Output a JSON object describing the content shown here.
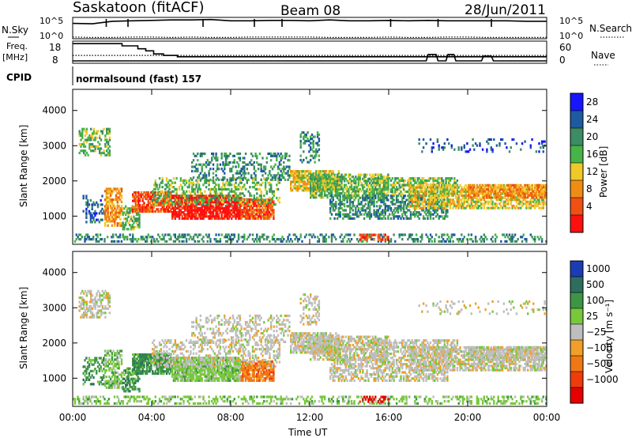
{
  "header": {
    "station": "Saskatoon (fitACF)",
    "beam": "Beam 08",
    "date": "28/Jun/2011"
  },
  "top_panels": {
    "nsky_label": "N.Sky",
    "nsearch_label": "N.Search",
    "nsky_ticks": [
      "10^5",
      "10^0"
    ],
    "freq_label_1": "Freq.",
    "freq_label_2": "[MHz]",
    "freq_ticks": [
      "18",
      "8"
    ],
    "nave_label": "Nave",
    "nave_ticks": [
      "60",
      "0"
    ],
    "cpid_label": "CPID",
    "cpid_value": "normalsound (fast) 157"
  },
  "colors": {
    "power_scale": [
      "#1616ff",
      "#1e5aa0",
      "#3c8c64",
      "#46b446",
      "#f0c828",
      "#f08c14",
      "#f05014",
      "#ff1010"
    ],
    "velocity_scale": [
      "#1c3cb4",
      "#2d6e5f",
      "#3c9646",
      "#78c83c",
      "#bebebe",
      "#f0a028",
      "#f07814",
      "#f03c0a",
      "#e60000"
    ],
    "ground_scatter": "#bebebe"
  },
  "chart_data": [
    {
      "type": "line",
      "series": [
        {
          "values": [
            3.6,
            3.5,
            4.1,
            4.2,
            4.3,
            4.4,
            4.4,
            4.5,
            4.2,
            4.2,
            4.3,
            4.3,
            4.2,
            4.4,
            4.2,
            4.2,
            4.3,
            4.2,
            4.3,
            4.2,
            4.2,
            4.2,
            4.2,
            4.1,
            4.1
          ]
        },
        {
          "values": [
            0.4,
            0.3,
            0.3,
            0.4,
            0.4,
            0.3,
            0.4,
            0.3,
            0.3,
            0.4,
            0.4,
            0.4,
            0.4,
            0.3,
            0.3,
            0.3,
            0.4,
            0.3,
            0.3,
            0.4,
            0.4,
            0.3,
            0.3,
            0.3,
            0.3
          ]
        }
      ],
      "x": [
        0,
        1,
        2,
        3,
        4,
        5,
        6,
        7,
        8,
        9,
        10,
        11,
        12,
        13,
        14,
        15,
        16,
        17,
        18,
        19,
        20,
        21,
        22,
        23,
        24
      ],
      "ylim": [
        0,
        5
      ],
      "ylog": true
    },
    {
      "type": "line",
      "series": [
        {
          "values": [
            18.5,
            18.5,
            18.5,
            18.5,
            17.2,
            17.2,
            17.2,
            15.5,
            15.5,
            14.3,
            14.3,
            12.5,
            12.5,
            11.6,
            11.6,
            11.6,
            11.6,
            10.8,
            10.8,
            10.8,
            10.8,
            10.8,
            10.8,
            10.8,
            10.8,
            10.8,
            10.8,
            10.8,
            10.8,
            10.8,
            10.8,
            10.8,
            10.8,
            10.8,
            10.8,
            10.8,
            10.8,
            10.8,
            10.8
          ]
        },
        {
          "values": [
            0,
            0,
            0,
            0,
            0,
            0,
            0,
            0,
            0,
            0,
            0,
            0,
            0,
            0,
            0,
            0,
            0,
            0,
            0,
            0,
            0,
            0,
            0,
            0,
            0,
            0,
            0,
            0,
            0,
            0,
            0,
            0,
            0,
            0,
            0,
            0,
            0,
            0,
            0
          ]
        }
      ],
      "x": [
        0,
        0.1,
        0.15,
        2.5,
        2.5,
        3.2,
        3.3,
        3.3,
        3.7,
        3.7,
        4.1,
        4.1,
        4.6,
        4.6,
        5.0,
        5.3,
        5.3,
        5.3,
        6.0,
        8.0,
        10.0,
        12.0,
        14.0,
        16.0,
        17.9,
        18.0,
        18.0,
        18.4,
        18.5,
        18.9,
        19.0,
        19.4,
        19.5,
        20.7,
        20.8,
        21.2,
        21.3,
        22.0,
        24.0
      ],
      "nave_points": {
        "x": [
          0,
          17.9,
          18.0,
          18.4,
          18.5,
          18.9,
          19.0,
          19.3,
          19.4,
          20.7,
          20.8,
          21.2,
          21.3,
          24
        ],
        "values": [
          0,
          0,
          20,
          20,
          0,
          0,
          20,
          20,
          0,
          0,
          15,
          15,
          0,
          0
        ]
      },
      "freq_ylim": [
        7,
        20
      ],
      "nave_ylim": [
        0,
        62
      ]
    },
    {
      "type": "heatmap",
      "ylabel": "Slant Range [km]",
      "colorbar_label": "Power [dB]",
      "colorbar_ticks": [
        "28",
        "24",
        "20",
        "16",
        "12",
        "8",
        "4"
      ],
      "y_ticks": [
        4000,
        3000,
        2000,
        1000
      ],
      "ylim": [
        200,
        4600
      ],
      "xlim": [
        0,
        24
      ]
    },
    {
      "type": "heatmap",
      "ylabel": "Slant Range [km]",
      "colorbar_label": "Velocity [m s⁻¹]",
      "colorbar_ticks": [
        "1000",
        "500",
        "100",
        "25",
        "−25",
        "−100",
        "−500",
        "−1000"
      ],
      "y_ticks": [
        4000,
        3000,
        2000,
        1000
      ],
      "ylim": [
        200,
        4600
      ],
      "xlim": [
        0,
        24
      ],
      "x_ticks": [
        "00:00",
        "04:00",
        "08:00",
        "12:00",
        "16:00",
        "20:00",
        "00:00"
      ],
      "xlabel": "Time UT"
    }
  ]
}
